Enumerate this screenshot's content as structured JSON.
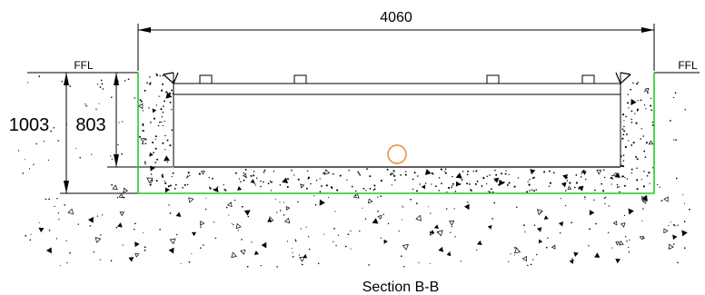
{
  "drawing": {
    "caption": "Section B-B",
    "width_dimension": "4060",
    "depth_total": "1003",
    "depth_inner": "803",
    "level_left": "FFL",
    "level_right": "FFL",
    "colors": {
      "line": "#000000",
      "outline_green": "#22cc22",
      "drain_orange": "#e08a2c",
      "background": "#ffffff"
    }
  }
}
